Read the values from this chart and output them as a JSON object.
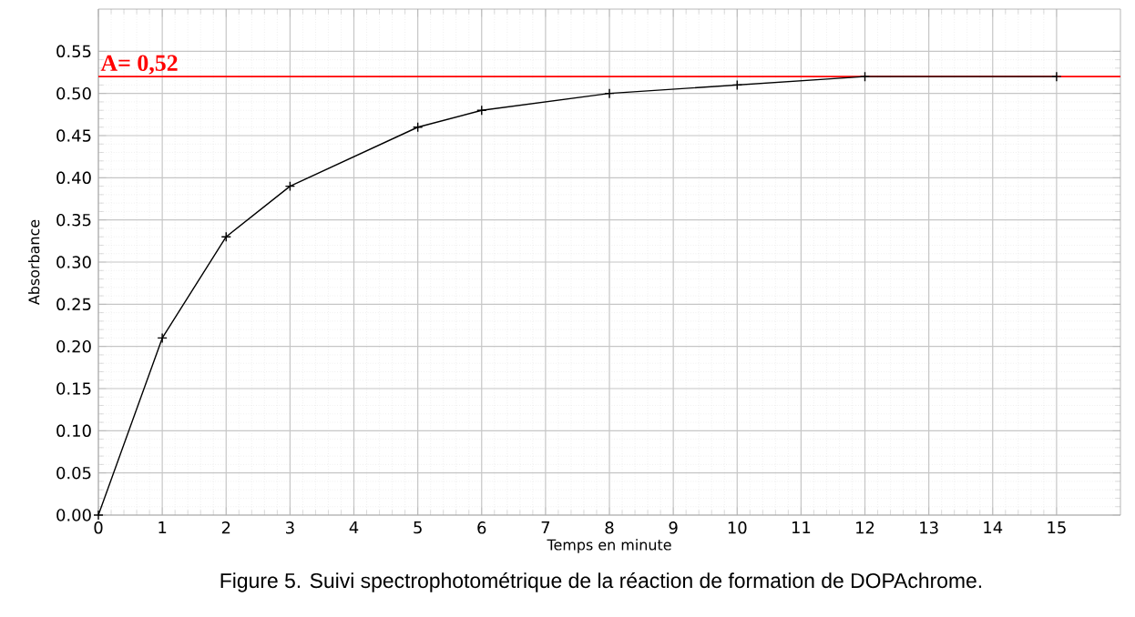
{
  "chart_data": {
    "type": "line",
    "xlabel": "Temps en minute",
    "ylabel": "Absorbance",
    "x": [
      0,
      1,
      2,
      3,
      5,
      6,
      8,
      10,
      12,
      15
    ],
    "series": [
      {
        "color": "#000000",
        "values": [
          0,
          0.21,
          0.33,
          0.39,
          0.46,
          0.48,
          0.5,
          0.51,
          0.52,
          0.52
        ]
      }
    ],
    "xlim": [
      0,
      16
    ],
    "ylim": [
      0,
      0.6
    ],
    "xticks": [
      0,
      1,
      2,
      3,
      4,
      5,
      6,
      7,
      8,
      9,
      10,
      11,
      12,
      13,
      14,
      15
    ],
    "yticks": [
      {
        "value": 0,
        "label": "0.00"
      },
      {
        "value": 0.05,
        "label": "0.05"
      },
      {
        "value": 0.1,
        "label": "0.10"
      },
      {
        "value": 0.15,
        "label": "0.15"
      },
      {
        "value": 0.2,
        "label": "0.20"
      },
      {
        "value": 0.25,
        "label": "0.25"
      },
      {
        "value": 0.3,
        "label": "0.30"
      },
      {
        "value": 0.35,
        "label": "0.35"
      },
      {
        "value": 0.4,
        "label": "0.40"
      },
      {
        "value": 0.45,
        "label": "0.45"
      },
      {
        "value": 0.5,
        "label": "0.50"
      },
      {
        "value": 0.55,
        "label": "0.55"
      }
    ],
    "grid": true,
    "marker": "cross",
    "line_style": "solid",
    "ref_lines": [
      {
        "axis": "y",
        "value": 0.52,
        "label": "A= 0,52",
        "color": "#ff0000"
      }
    ],
    "annotations": [
      "Figure 5. Suivi spectrophotométrique de la réaction de formation de DOPAchrome."
    ]
  }
}
